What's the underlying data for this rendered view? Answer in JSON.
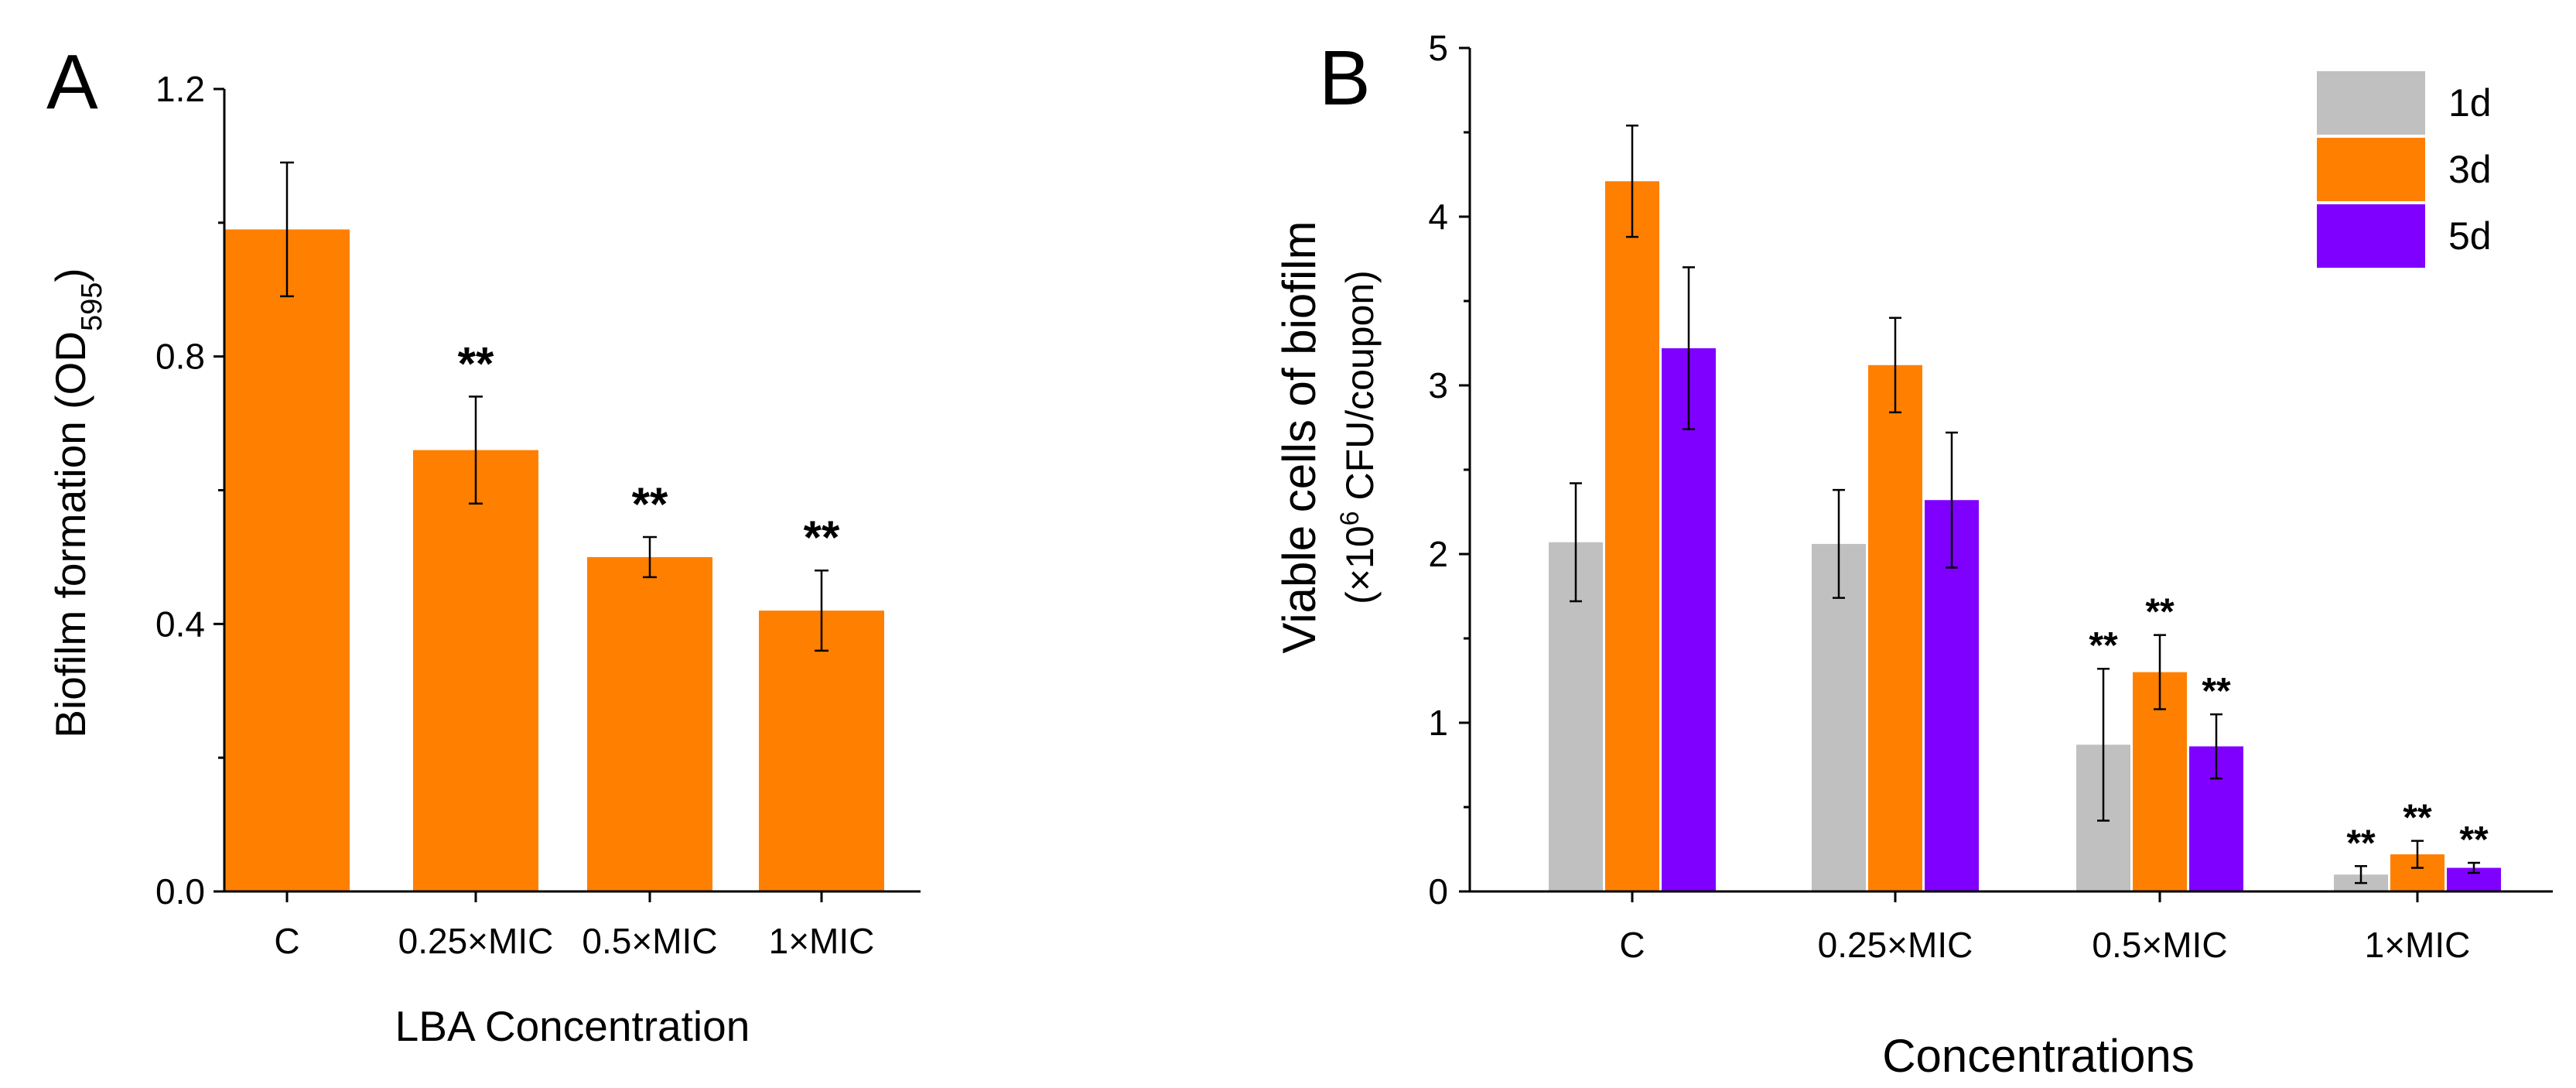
{
  "chart_data": [
    {
      "panel": "A",
      "type": "bar",
      "categories": [
        "C",
        "0.25×MIC",
        "0.5×MIC",
        "1×MIC"
      ],
      "values": [
        0.99,
        0.66,
        0.5,
        0.42
      ],
      "errors": [
        0.1,
        0.08,
        0.03,
        0.06
      ],
      "significance": [
        "",
        "**",
        "**",
        "**"
      ],
      "xlabel": "LBA Concentration",
      "ylabel_main": "Biofilm formation (OD",
      "ylabel_sub": "595",
      "ylabel_close": ")",
      "ylim": [
        0,
        1.2
      ],
      "yticks": [
        0.0,
        0.4,
        0.8,
        1.2
      ],
      "ytick_labels": [
        "0.0",
        "0.4",
        "0.8",
        "1.2"
      ],
      "bar_color": "#ff7f00",
      "grid": false
    },
    {
      "panel": "B",
      "type": "bar",
      "categories": [
        "C",
        "0.25×MIC",
        "0.5×MIC",
        "1×MIC"
      ],
      "series": [
        {
          "name": "1d",
          "color": "#c0c0c0",
          "values": [
            2.07,
            2.06,
            0.87,
            0.1
          ],
          "errors": [
            0.35,
            0.32,
            0.45,
            0.05
          ],
          "significance": [
            "",
            "",
            "**",
            "**"
          ]
        },
        {
          "name": "3d",
          "color": "#ff7f00",
          "values": [
            4.21,
            3.12,
            1.3,
            0.22
          ],
          "errors": [
            0.33,
            0.28,
            0.22,
            0.08
          ],
          "significance": [
            "",
            "",
            "**",
            "**"
          ]
        },
        {
          "name": "5d",
          "color": "#8000ff",
          "values": [
            3.22,
            2.32,
            0.86,
            0.14
          ],
          "errors": [
            0.48,
            0.4,
            0.19,
            0.03
          ],
          "significance": [
            "",
            "",
            "**",
            "**"
          ]
        }
      ],
      "xlabel": "Concentrations",
      "ylabel_line1": "Viable cells of biofilm",
      "ylabel_line2_pre": "(×10",
      "ylabel_line2_sup": "6",
      "ylabel_line2_post": " CFU/coupon)",
      "ylim": [
        0,
        5
      ],
      "yticks": [
        0,
        1,
        2,
        3,
        4,
        5
      ],
      "ytick_labels": [
        "0",
        "1",
        "2",
        "3",
        "4",
        "5"
      ],
      "legend_position": "top-right",
      "grid": false
    }
  ],
  "panels": {
    "a_letter": "A",
    "b_letter": "B"
  }
}
